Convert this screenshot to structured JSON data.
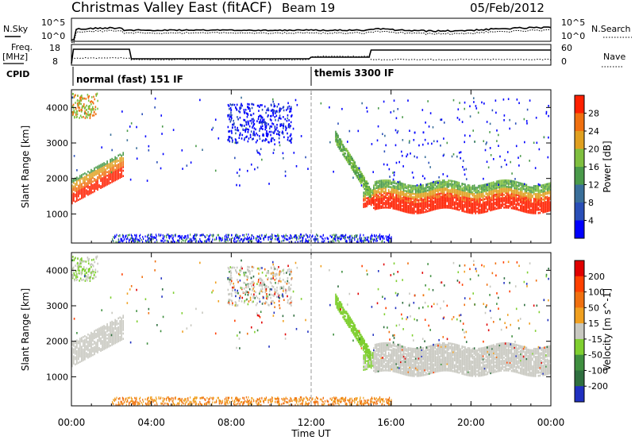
{
  "header": {
    "title": "Christmas Valley East (fitACF)",
    "beam": "Beam 19",
    "date": "05/Feb/2012"
  },
  "side_labels": {
    "nsky": "N.Sky",
    "nsearch": "N.Search",
    "freq": "Freq.",
    "freq_unit": "[MHz]",
    "nave": "Nave",
    "cpid": "CPID"
  },
  "noise_axis": {
    "left_ticks": [
      "10^5",
      "10^0"
    ],
    "right_ticks": [
      "10^5",
      "10^0"
    ]
  },
  "freq_axis": {
    "left_ticks": [
      "18",
      "8"
    ],
    "right_ticks": [
      "60",
      "0"
    ]
  },
  "cpid_entries": [
    {
      "label": "normal (fast) 151 IF",
      "start_hour": 0
    },
    {
      "label": "themis 3300 IF",
      "start_hour": 12
    }
  ],
  "colors": {
    "power_scale": [
      "#0000ff",
      "#2a4fb8",
      "#3a6f9a",
      "#4a9a4a",
      "#7fbf3f",
      "#e0a020",
      "#f07010",
      "#ff2000"
    ],
    "velocity_scale": [
      "#2030c0",
      "#2f6f3f",
      "#3f8f3f",
      "#7fcf30",
      "#c8c8c0",
      "#f0a020",
      "#f07010",
      "#ff4000",
      "#e00000"
    ]
  },
  "chart_data": [
    {
      "type": "heatmap",
      "name": "power",
      "ylabel": "Slant Range [km]",
      "ylim": [
        180,
        4500
      ],
      "xlim": [
        0,
        24
      ],
      "y_ticks": [
        "1000",
        "2000",
        "3000",
        "4000"
      ],
      "colorbar_label": "Power [dB]",
      "colorbar_ticks": [
        "28",
        "24",
        "20",
        "16",
        "12",
        "8",
        "4"
      ]
    },
    {
      "type": "heatmap",
      "name": "velocity",
      "ylabel": "Slant Range [km]",
      "xlabel": "Time UT",
      "ylim": [
        180,
        4500
      ],
      "xlim": [
        0,
        24
      ],
      "y_ticks": [
        "1000",
        "2000",
        "3000",
        "4000"
      ],
      "x_ticks": [
        "00:00",
        "04:00",
        "08:00",
        "12:00",
        "16:00",
        "20:00",
        "00:00"
      ],
      "colorbar_label": "Velocity [m s^-1]",
      "colorbar_ticks": [
        "200",
        "100",
        "50",
        "15",
        "-15",
        "-50",
        "-100",
        "-200"
      ]
    }
  ]
}
